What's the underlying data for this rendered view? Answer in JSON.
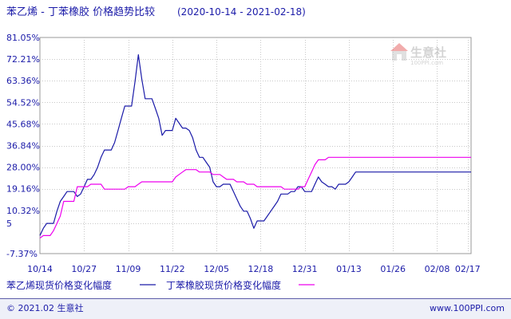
{
  "page": {
    "title": "苯乙烯 - 丁苯橡胶 价格趋势比较",
    "date_range": "(2020-10-14 - 2021-02-18)",
    "footer_left": "© 2021.02 生意社",
    "footer_right": "www.100PPI.com",
    "watermark_text": "生意社",
    "watermark_url": "100PPI.com"
  },
  "colors": {
    "series1": "#1a1aa8",
    "series2": "#ee00ee",
    "text": "#1a1aa8",
    "grid": "#c8c8c8",
    "border": "#999999"
  },
  "chart_data": {
    "type": "line",
    "title": "苯乙烯 - 丁苯橡胶 价格趋势比较",
    "subtitle": "(2020-10-14 - 2021-02-18)",
    "ylabel": "",
    "xlabel": "",
    "x_ticks": [
      "10/14",
      "10/27",
      "11/09",
      "11/22",
      "12/05",
      "12/18",
      "12/31",
      "01/13",
      "01/26",
      "02/08",
      "02/17"
    ],
    "x_tick_days": [
      0,
      13,
      26,
      39,
      52,
      65,
      78,
      91,
      104,
      117,
      126
    ],
    "y_ticks": [
      "81.05%",
      "72.21%",
      "63.36%",
      "54.52%",
      "45.68%",
      "36.84%",
      "28.00%",
      "19.16%",
      "10.32%",
      "5",
      "-7.37%"
    ],
    "y_tick_values": [
      81.05,
      72.21,
      63.36,
      54.52,
      45.68,
      36.84,
      28.0,
      19.16,
      10.32,
      5,
      -7.37
    ],
    "ylim": [
      -7.37,
      81.05
    ],
    "x_range_days": [
      0,
      127
    ],
    "grid": true,
    "legend_position": "bottom",
    "series": [
      {
        "name": "苯乙烯现货价格变化幅度",
        "color": "#1a1aa8",
        "points": [
          [
            0,
            0
          ],
          [
            1,
            3
          ],
          [
            2,
            5
          ],
          [
            3,
            5
          ],
          [
            4,
            5
          ],
          [
            5,
            10
          ],
          [
            6,
            14
          ],
          [
            7,
            16
          ],
          [
            8,
            18
          ],
          [
            9,
            18
          ],
          [
            10,
            18
          ],
          [
            11,
            16
          ],
          [
            12,
            17
          ],
          [
            13,
            20
          ],
          [
            14,
            23
          ],
          [
            15,
            23
          ],
          [
            16,
            25
          ],
          [
            17,
            28
          ],
          [
            18,
            32
          ],
          [
            19,
            35
          ],
          [
            20,
            35
          ],
          [
            21,
            35
          ],
          [
            22,
            38
          ],
          [
            23,
            43
          ],
          [
            24,
            48
          ],
          [
            25,
            53
          ],
          [
            26,
            53
          ],
          [
            27,
            53
          ],
          [
            28,
            63
          ],
          [
            29,
            74
          ],
          [
            30,
            64
          ],
          [
            31,
            56
          ],
          [
            32,
            56
          ],
          [
            33,
            56
          ],
          [
            34,
            52
          ],
          [
            35,
            48
          ],
          [
            36,
            41
          ],
          [
            37,
            43
          ],
          [
            38,
            43
          ],
          [
            39,
            43
          ],
          [
            40,
            48
          ],
          [
            41,
            46
          ],
          [
            42,
            44
          ],
          [
            43,
            44
          ],
          [
            44,
            43
          ],
          [
            45,
            40
          ],
          [
            46,
            35
          ],
          [
            47,
            32
          ],
          [
            48,
            32
          ],
          [
            49,
            30
          ],
          [
            50,
            28
          ],
          [
            51,
            22
          ],
          [
            52,
            20
          ],
          [
            53,
            20
          ],
          [
            54,
            21
          ],
          [
            55,
            21
          ],
          [
            56,
            21
          ],
          [
            57,
            18
          ],
          [
            58,
            15
          ],
          [
            59,
            12
          ],
          [
            60,
            10
          ],
          [
            61,
            10
          ],
          [
            62,
            7
          ],
          [
            63,
            3
          ],
          [
            64,
            6
          ],
          [
            65,
            6
          ],
          [
            66,
            6
          ],
          [
            67,
            8
          ],
          [
            68,
            10
          ],
          [
            69,
            12
          ],
          [
            70,
            14
          ],
          [
            71,
            17
          ],
          [
            72,
            17
          ],
          [
            73,
            17
          ],
          [
            74,
            18
          ],
          [
            75,
            18
          ],
          [
            76,
            20
          ],
          [
            77,
            20
          ],
          [
            78,
            18
          ],
          [
            79,
            18
          ],
          [
            80,
            18
          ],
          [
            81,
            21
          ],
          [
            82,
            24
          ],
          [
            83,
            22
          ],
          [
            84,
            21
          ],
          [
            85,
            20
          ],
          [
            86,
            20
          ],
          [
            87,
            19
          ],
          [
            88,
            21
          ],
          [
            89,
            21
          ],
          [
            90,
            21
          ],
          [
            91,
            22
          ],
          [
            92,
            24
          ],
          [
            93,
            26
          ],
          [
            94,
            26
          ],
          [
            95,
            26
          ],
          [
            96,
            26
          ],
          [
            97,
            26
          ],
          [
            98,
            26
          ],
          [
            99,
            26
          ],
          [
            100,
            26
          ],
          [
            101,
            26
          ],
          [
            102,
            26
          ],
          [
            103,
            26
          ],
          [
            104,
            26
          ],
          [
            105,
            26
          ],
          [
            106,
            26
          ],
          [
            107,
            26
          ],
          [
            108,
            26
          ],
          [
            109,
            26
          ],
          [
            110,
            26
          ],
          [
            111,
            26
          ],
          [
            112,
            26
          ],
          [
            113,
            26
          ],
          [
            114,
            26
          ],
          [
            115,
            26
          ],
          [
            116,
            26
          ],
          [
            117,
            26
          ],
          [
            118,
            26
          ],
          [
            119,
            26
          ],
          [
            120,
            26
          ],
          [
            121,
            26
          ],
          [
            122,
            26
          ],
          [
            123,
            26
          ],
          [
            124,
            26
          ],
          [
            125,
            26
          ],
          [
            126,
            26
          ],
          [
            127,
            26
          ]
        ]
      },
      {
        "name": "丁苯橡胶现货价格变化幅度",
        "color": "#ee00ee",
        "points": [
          [
            0,
            -1
          ],
          [
            1,
            0
          ],
          [
            2,
            0
          ],
          [
            3,
            0
          ],
          [
            4,
            2
          ],
          [
            5,
            5
          ],
          [
            6,
            8
          ],
          [
            7,
            14
          ],
          [
            8,
            14
          ],
          [
            9,
            14
          ],
          [
            10,
            14
          ],
          [
            11,
            20
          ],
          [
            12,
            20
          ],
          [
            13,
            20
          ],
          [
            14,
            20
          ],
          [
            15,
            21
          ],
          [
            16,
            21
          ],
          [
            17,
            21
          ],
          [
            18,
            21
          ],
          [
            19,
            19
          ],
          [
            20,
            19
          ],
          [
            21,
            19
          ],
          [
            22,
            19
          ],
          [
            23,
            19
          ],
          [
            24,
            19
          ],
          [
            25,
            19
          ],
          [
            26,
            20
          ],
          [
            27,
            20
          ],
          [
            28,
            20
          ],
          [
            29,
            21
          ],
          [
            30,
            22
          ],
          [
            31,
            22
          ],
          [
            32,
            22
          ],
          [
            33,
            22
          ],
          [
            34,
            22
          ],
          [
            35,
            22
          ],
          [
            36,
            22
          ],
          [
            37,
            22
          ],
          [
            38,
            22
          ],
          [
            39,
            22
          ],
          [
            40,
            24
          ],
          [
            41,
            25
          ],
          [
            42,
            26
          ],
          [
            43,
            27
          ],
          [
            44,
            27
          ],
          [
            45,
            27
          ],
          [
            46,
            27
          ],
          [
            47,
            26
          ],
          [
            48,
            26
          ],
          [
            49,
            26
          ],
          [
            50,
            26
          ],
          [
            51,
            25
          ],
          [
            52,
            25
          ],
          [
            53,
            25
          ],
          [
            54,
            24
          ],
          [
            55,
            23
          ],
          [
            56,
            23
          ],
          [
            57,
            23
          ],
          [
            58,
            22
          ],
          [
            59,
            22
          ],
          [
            60,
            22
          ],
          [
            61,
            21
          ],
          [
            62,
            21
          ],
          [
            63,
            21
          ],
          [
            64,
            20
          ],
          [
            65,
            20
          ],
          [
            66,
            20
          ],
          [
            67,
            20
          ],
          [
            68,
            20
          ],
          [
            69,
            20
          ],
          [
            70,
            20
          ],
          [
            71,
            20
          ],
          [
            72,
            19
          ],
          [
            73,
            19
          ],
          [
            74,
            19
          ],
          [
            75,
            19
          ],
          [
            76,
            19
          ],
          [
            77,
            20
          ],
          [
            78,
            20
          ],
          [
            79,
            23
          ],
          [
            80,
            26
          ],
          [
            81,
            29
          ],
          [
            82,
            31
          ],
          [
            83,
            31
          ],
          [
            84,
            31
          ],
          [
            85,
            32
          ],
          [
            86,
            32
          ],
          [
            87,
            32
          ],
          [
            88,
            32
          ],
          [
            89,
            32
          ],
          [
            90,
            32
          ],
          [
            91,
            32
          ],
          [
            92,
            32
          ],
          [
            93,
            32
          ],
          [
            94,
            32
          ],
          [
            95,
            32
          ],
          [
            96,
            32
          ],
          [
            97,
            32
          ],
          [
            98,
            32
          ],
          [
            99,
            32
          ],
          [
            100,
            32
          ],
          [
            101,
            32
          ],
          [
            102,
            32
          ],
          [
            103,
            32
          ],
          [
            104,
            32
          ],
          [
            105,
            32
          ],
          [
            106,
            32
          ],
          [
            107,
            32
          ],
          [
            108,
            32
          ],
          [
            109,
            32
          ],
          [
            110,
            32
          ],
          [
            111,
            32
          ],
          [
            112,
            32
          ],
          [
            113,
            32
          ],
          [
            114,
            32
          ],
          [
            115,
            32
          ],
          [
            116,
            32
          ],
          [
            117,
            32
          ],
          [
            118,
            32
          ],
          [
            119,
            32
          ],
          [
            120,
            32
          ],
          [
            121,
            32
          ],
          [
            122,
            32
          ],
          [
            123,
            32
          ],
          [
            124,
            32
          ],
          [
            125,
            32
          ],
          [
            126,
            32
          ],
          [
            127,
            32
          ]
        ]
      }
    ]
  }
}
